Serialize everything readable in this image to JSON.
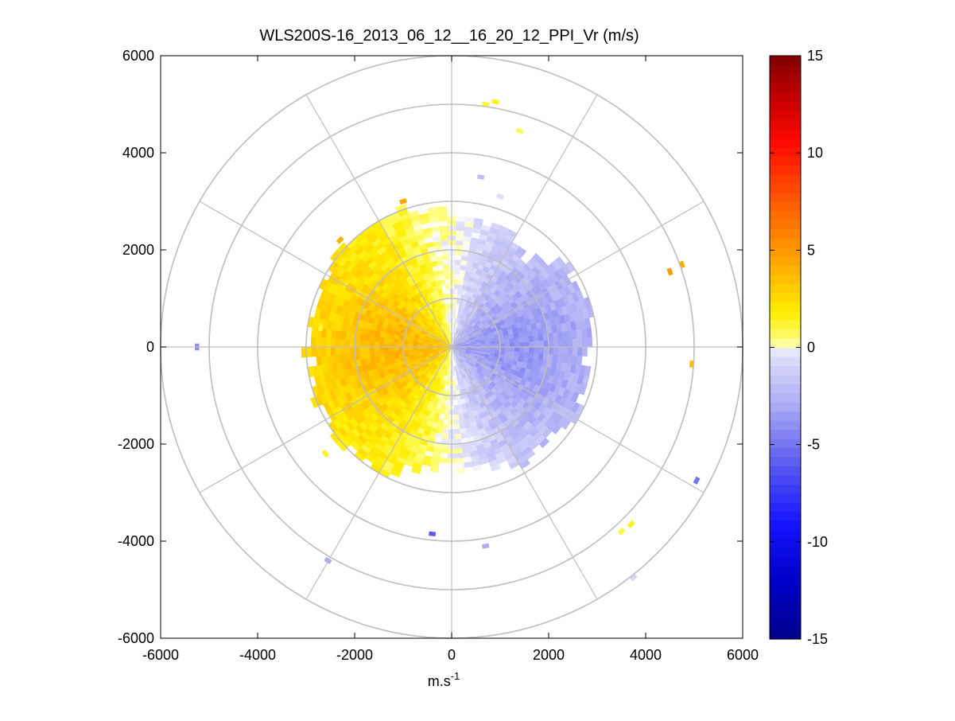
{
  "chart_data": {
    "type": "heatmap",
    "title": "WLS200S-16_2013_06_12__16_20_12_PPI_Vr (m/s)",
    "xlabel": "m.s",
    "xlabel_sup": "-1",
    "ylabel": "",
    "xlim": [
      -6000,
      6000
    ],
    "ylim": [
      -6000,
      6000
    ],
    "xticks": [
      -6000,
      -4000,
      -2000,
      0,
      2000,
      4000,
      6000
    ],
    "yticks": [
      -6000,
      -4000,
      -2000,
      0,
      2000,
      4000,
      6000
    ],
    "polar_grid": {
      "ring_radii": [
        1000,
        2000,
        3000,
        4000,
        5000,
        6000
      ],
      "spoke_angles_deg": [
        0,
        30,
        60,
        90,
        120,
        150,
        180,
        210,
        240,
        270,
        300,
        330
      ]
    },
    "colorbar": {
      "clim": [
        -15,
        15
      ],
      "ticks": [
        -15,
        -10,
        -5,
        0,
        5,
        10,
        15
      ],
      "colors": {
        "neg_dark": "#00008c",
        "neg_mid": "#1414ff",
        "neg_light": "#e6e6fa",
        "zero": "#ffffff",
        "pos_light": "#ffff80",
        "pos_yellow": "#ffee00",
        "pos_orange": "#ff9900",
        "pos_red": "#ff1400",
        "pos_dark": "#7f0000"
      }
    },
    "field": {
      "description": "PPI radial velocity, west half approaching (positive), east half receding (negative)",
      "max_range_core": 2900,
      "gate_spacing": 100,
      "beam_width_deg": 4
    },
    "outliers": [
      {
        "x": 900,
        "y": 5050,
        "vr": 1.5
      },
      {
        "x": 700,
        "y": 5000,
        "vr": 1.2
      },
      {
        "x": 1400,
        "y": 4450,
        "vr": 0.8
      },
      {
        "x": 600,
        "y": 3500,
        "vr": -2.0
      },
      {
        "x": 1000,
        "y": 3100,
        "vr": -0.5
      },
      {
        "x": -1000,
        "y": 3000,
        "vr": 4.5
      },
      {
        "x": -2300,
        "y": 2200,
        "vr": 4.0
      },
      {
        "x": 4500,
        "y": 1550,
        "vr": 5.0
      },
      {
        "x": 4750,
        "y": 1700,
        "vr": 4.0
      },
      {
        "x": 4950,
        "y": -350,
        "vr": 3.5
      },
      {
        "x": -5250,
        "y": 0,
        "vr": -4.0
      },
      {
        "x": 5050,
        "y": -2750,
        "vr": -5.0
      },
      {
        "x": 3700,
        "y": -3650,
        "vr": 1.5
      },
      {
        "x": 3500,
        "y": -3800,
        "vr": 1.0
      },
      {
        "x": 3750,
        "y": -4750,
        "vr": -0.8
      },
      {
        "x": -2600,
        "y": -2200,
        "vr": 1.5
      },
      {
        "x": -400,
        "y": -3850,
        "vr": -6.0
      },
      {
        "x": 700,
        "y": -4100,
        "vr": -3.0
      },
      {
        "x": -2550,
        "y": -4400,
        "vr": -3.0
      },
      {
        "x": -2700,
        "y": 400,
        "vr": 1.2
      }
    ]
  }
}
